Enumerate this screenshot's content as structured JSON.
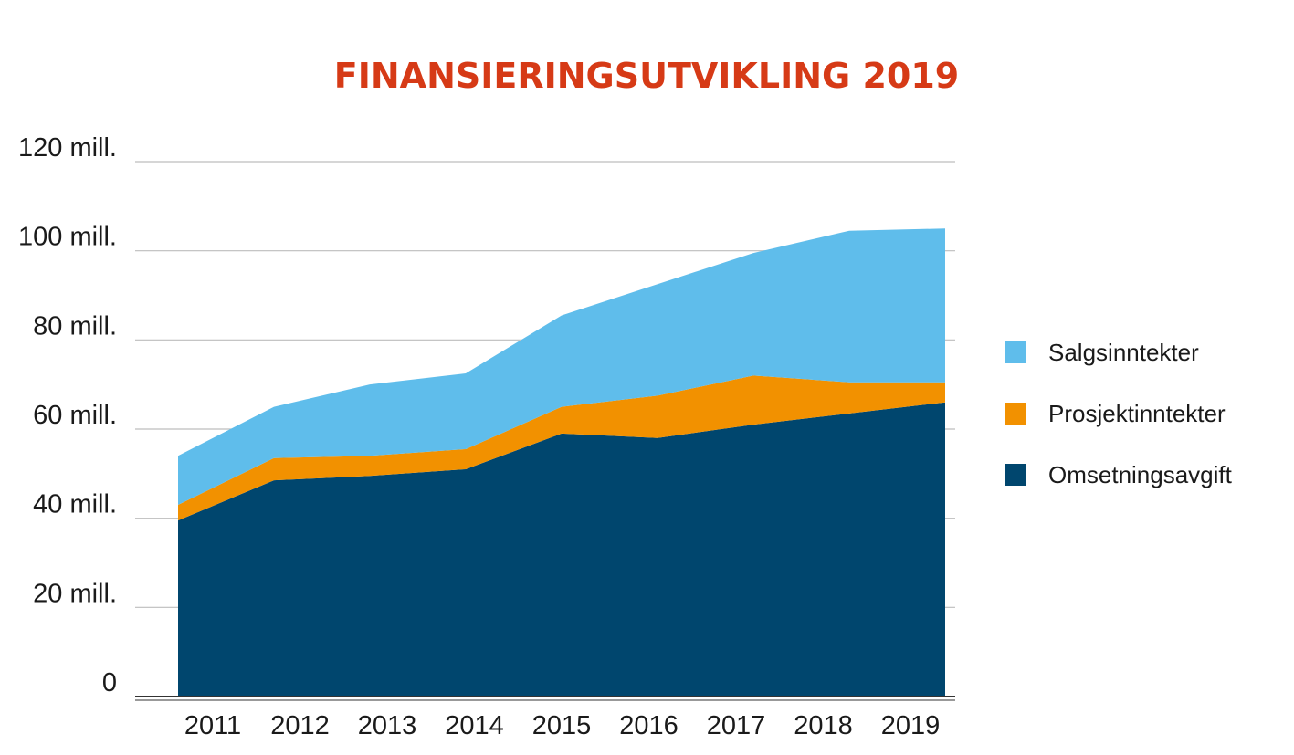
{
  "chart_data": {
    "type": "area",
    "stacked": true,
    "title": "FINANSIERINGSUTVIKLING 2019",
    "title_color": "#d63a16",
    "categories": [
      "2011",
      "2012",
      "2013",
      "2014",
      "2015",
      "2016",
      "2017",
      "2018",
      "2019"
    ],
    "series": [
      {
        "name": "Omsetningsavgift",
        "color": "#00466e",
        "values": [
          39.5,
          48.5,
          49.5,
          51,
          59,
          58,
          61,
          63.5,
          66
        ]
      },
      {
        "name": "Prosjektinntekter",
        "color": "#f29100",
        "values": [
          3.5,
          5,
          4.5,
          4.5,
          6,
          9.5,
          11,
          7,
          4.5
        ]
      },
      {
        "name": "Salgsinntekter",
        "color": "#5fbdeb",
        "values": [
          11,
          11.5,
          16,
          17,
          20.5,
          25,
          27.5,
          34,
          34.5
        ]
      }
    ],
    "ylim": [
      0,
      120
    ],
    "yticks": [
      0,
      20,
      40,
      60,
      80,
      100,
      120
    ],
    "ytick_labels": [
      "0",
      "20 mill.",
      "40 mill.",
      "60 mill.",
      "80 mill.",
      "100 mill.",
      "120 mill."
    ],
    "grid": true,
    "legend_position": "right"
  }
}
